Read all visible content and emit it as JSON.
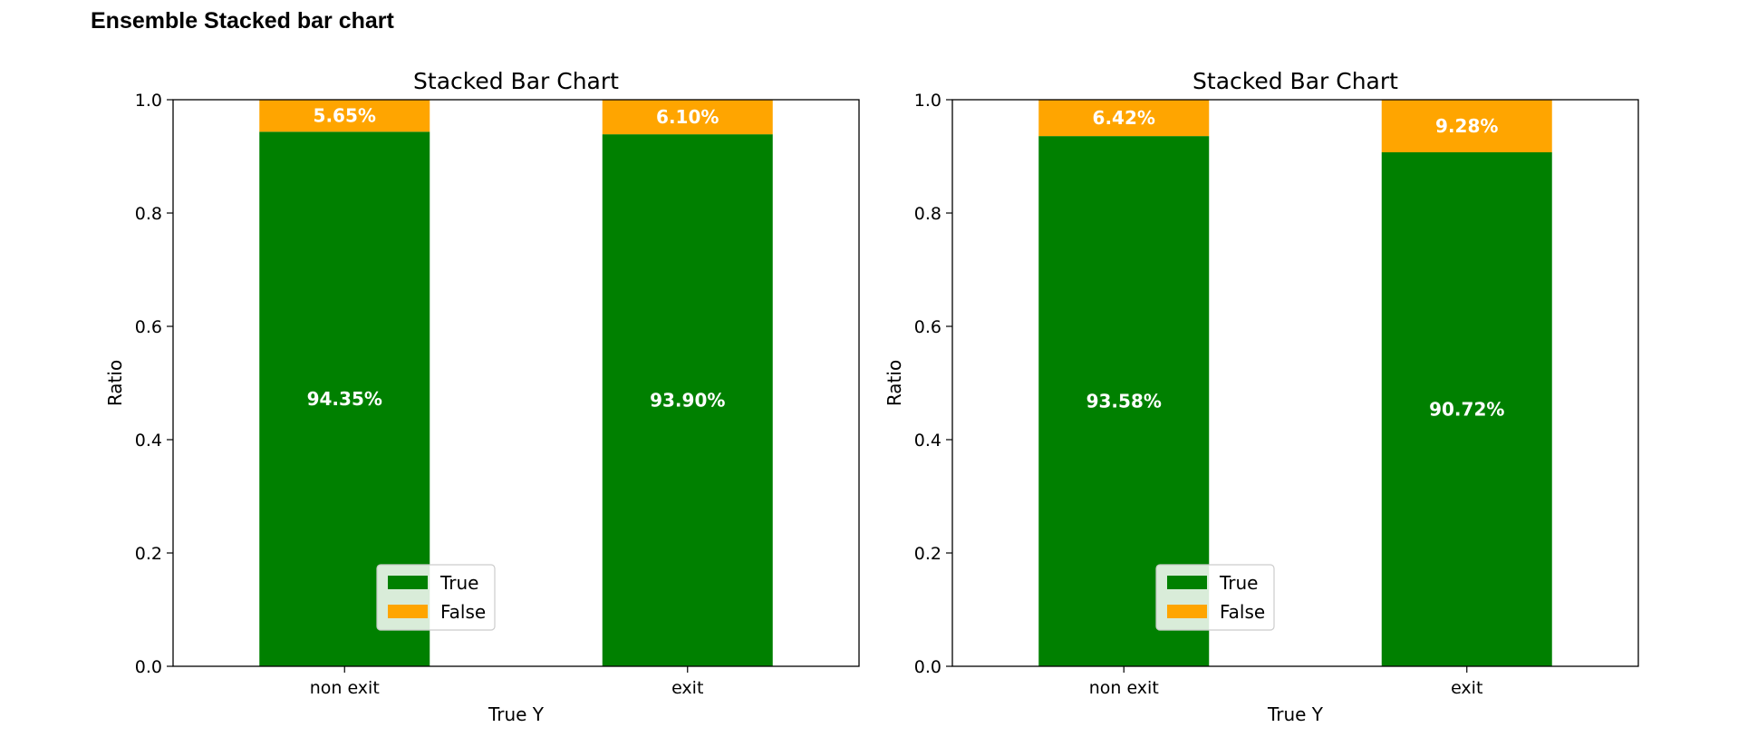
{
  "page": {
    "title": "Ensemble Stacked bar chart"
  },
  "chart_data": [
    {
      "type": "bar",
      "stacked": true,
      "title": "Stacked Bar Chart",
      "xlabel": "True Y",
      "ylabel": "Ratio",
      "ylim": [
        0,
        1
      ],
      "yticks": [
        "0.0",
        "0.2",
        "0.4",
        "0.6",
        "0.8",
        "1.0"
      ],
      "categories": [
        "non exit",
        "exit"
      ],
      "series": [
        {
          "name": "True",
          "color": "#008000",
          "values": [
            0.9435,
            0.939
          ],
          "labels": [
            "94.35%",
            "93.90%"
          ]
        },
        {
          "name": "False",
          "color": "#FFA500",
          "values": [
            0.0565,
            0.061
          ],
          "labels": [
            "5.65%",
            "6.10%"
          ]
        }
      ],
      "legend": "lower-right",
      "grid": false
    },
    {
      "type": "bar",
      "stacked": true,
      "title": "Stacked Bar Chart",
      "xlabel": "True Y",
      "ylabel": "Ratio",
      "ylim": [
        0,
        1
      ],
      "yticks": [
        "0.0",
        "0.2",
        "0.4",
        "0.6",
        "0.8",
        "1.0"
      ],
      "categories": [
        "non exit",
        "exit"
      ],
      "series": [
        {
          "name": "True",
          "color": "#008000",
          "values": [
            0.9358,
            0.9072
          ],
          "labels": [
            "93.58%",
            "90.72%"
          ]
        },
        {
          "name": "False",
          "color": "#FFA500",
          "values": [
            0.0642,
            0.0928
          ],
          "labels": [
            "6.42%",
            "9.28%"
          ]
        }
      ],
      "legend": "lower-right",
      "grid": false
    }
  ]
}
